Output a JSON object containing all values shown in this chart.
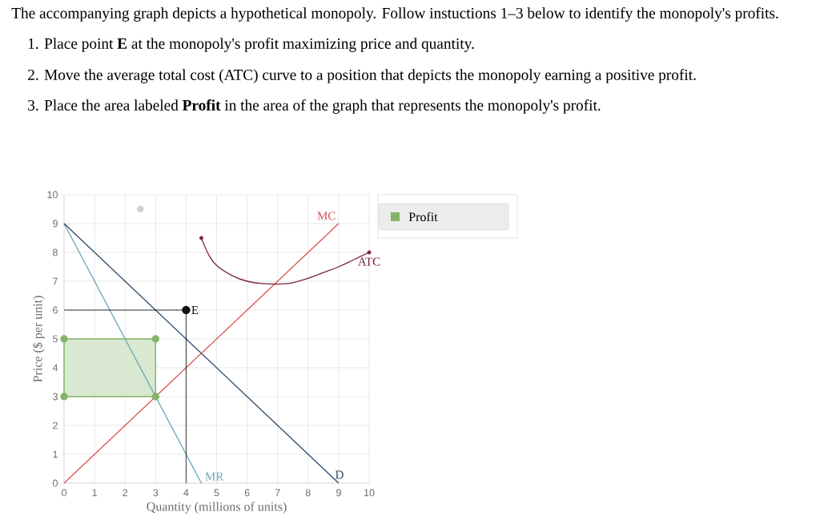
{
  "chart_data": {
    "type": "line",
    "title": "The accompanying graph depicts a hypothetical monopoly. Follow instuctions 1–3 below to identify the monopoly's profits.",
    "annotations": [
      "1. Place point **E** at the monopoly's profit maximizing price and quantity.",
      "2. Move the average total cost (ATC) curve to a position that depicts the monopoly earning a positive profit.",
      "3. Place the area labeled **Profit** in the area of the graph that represents the monopoly's profit."
    ],
    "xlabel": "Quantity (millions of units)",
    "ylabel": "Price ($ per unit)",
    "xlim": [
      0,
      10
    ],
    "ylim": [
      0,
      10
    ],
    "xticks": [
      0,
      1,
      2,
      3,
      4,
      5,
      6,
      7,
      8,
      9,
      10
    ],
    "yticks": [
      0,
      1,
      2,
      3,
      4,
      5,
      6,
      7,
      8,
      9,
      10
    ],
    "grid": true,
    "legend": "top right",
    "series": [
      {
        "name": "Profit",
        "type": "area",
        "color": "#82b366",
        "marker": "circle",
        "x": [
          0,
          3,
          3,
          0
        ],
        "values": [
          5,
          5,
          3,
          3
        ]
      },
      {
        "name": "MR",
        "color": "#6aa6b8",
        "x": [
          0,
          4.5
        ],
        "values": [
          9,
          0
        ]
      },
      {
        "name": "D",
        "color": "#2a4a6b",
        "x": [
          0,
          9
        ],
        "values": [
          9,
          0
        ]
      },
      {
        "name": "MC",
        "color": "#d9534f",
        "x": [
          0,
          9
        ],
        "values": [
          0,
          9
        ]
      },
      {
        "name": "ATC",
        "color": "#7b2342",
        "x": [
          4.5,
          4.75,
          5,
          5.5,
          6,
          6.5,
          7,
          7.5,
          8,
          8.5,
          9,
          9.5,
          10
        ],
        "values": [
          8.5,
          7.9,
          7.55,
          7.2,
          7.0,
          6.92,
          6.9,
          6.95,
          7.1,
          7.3,
          7.5,
          7.75,
          8
        ]
      },
      {
        "type": "scatter",
        "color": "#7b2342",
        "marker": "circle",
        "x": [
          4.5,
          10
        ],
        "values": [
          8.5,
          8
        ]
      },
      {
        "color": "#000000",
        "x": [
          0,
          4
        ],
        "values": [
          6,
          6
        ]
      },
      {
        "color": "#000000",
        "x": [
          4,
          4
        ],
        "values": [
          6,
          0
        ]
      },
      {
        "name": "E",
        "type": "scatter",
        "color": "#111111",
        "marker": "circle",
        "x": [
          4
        ],
        "values": [
          6
        ]
      },
      {
        "type": "scatter",
        "color": "#d0d0d0",
        "marker": "circle",
        "x": [
          2.5
        ],
        "values": [
          9.5
        ]
      }
    ]
  }
}
